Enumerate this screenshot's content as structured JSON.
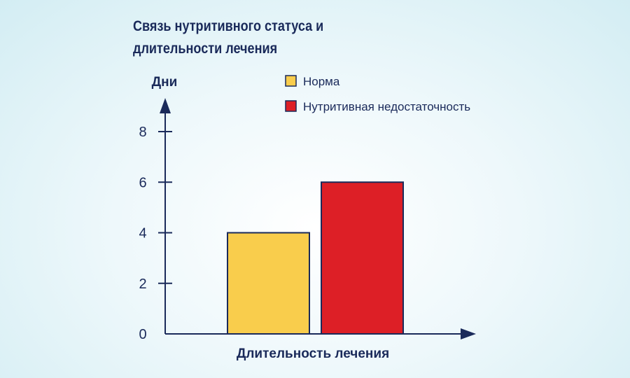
{
  "chart_data": {
    "type": "bar",
    "title": "Связь нутритивного статуса и длительности лечения",
    "xlabel": "Длительность лечения",
    "ylabel": "Дни",
    "ylim": [
      0,
      8
    ],
    "yticks": [
      0,
      2,
      4,
      6,
      8
    ],
    "grid": false,
    "legend_position": "top",
    "series": [
      {
        "name": "Норма",
        "value": 4,
        "color": "#f9cd4c"
      },
      {
        "name": "Нутритивная недостаточность",
        "value": 6,
        "color": "#dd1f26"
      }
    ],
    "axis_color": "#1a2a5a"
  }
}
